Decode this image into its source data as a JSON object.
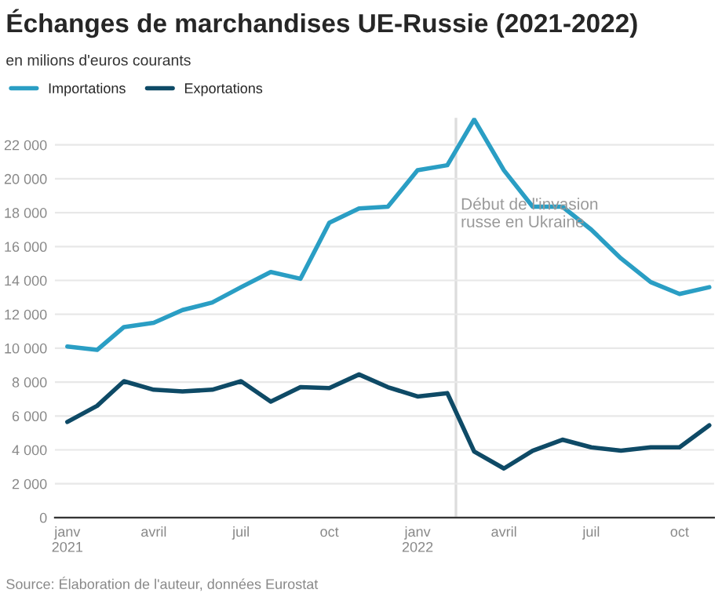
{
  "chart_data": {
    "type": "line",
    "title": "Échanges de marchandises UE-Russie (2021-2022)",
    "subtitle": "en milions d'euros courants",
    "x": [
      "2021-01",
      "2021-02",
      "2021-03",
      "2021-04",
      "2021-05",
      "2021-06",
      "2021-07",
      "2021-08",
      "2021-09",
      "2021-10",
      "2021-11",
      "2021-12",
      "2022-01",
      "2022-02",
      "2022-03",
      "2022-04",
      "2022-05",
      "2022-06",
      "2022-07",
      "2022-08",
      "2022-09",
      "2022-10",
      "2022-11"
    ],
    "series": [
      {
        "name": "Importations",
        "color": "#2a9ec4",
        "values": [
          10100,
          9900,
          11250,
          11500,
          12250,
          12700,
          13600,
          14500,
          14100,
          17400,
          18250,
          18350,
          20500,
          20800,
          23500,
          20500,
          18350,
          18350,
          17000,
          15300,
          13900,
          13200,
          13600
        ]
      },
      {
        "name": "Exportations",
        "color": "#0e4a66",
        "values": [
          5650,
          6600,
          8050,
          7550,
          7450,
          7550,
          8050,
          6850,
          7700,
          7650,
          8450,
          7700,
          7150,
          7350,
          3900,
          2900,
          3950,
          4600,
          4150,
          3950,
          4150,
          4150,
          5450
        ]
      }
    ],
    "xlim": [
      "2020-12-19",
      "2022-11-06"
    ],
    "xticks": [
      {
        "value": "2021-01",
        "label": "janv\n2021"
      },
      {
        "value": "2021-04",
        "label": "avril"
      },
      {
        "value": "2021-07",
        "label": "juil"
      },
      {
        "value": "2021-10",
        "label": "oct"
      },
      {
        "value": "2022-01",
        "label": "janv\n2022"
      },
      {
        "value": "2022-04",
        "label": "avril"
      },
      {
        "value": "2022-07",
        "label": "juil"
      },
      {
        "value": "2022-10",
        "label": "oct"
      }
    ],
    "ylim": [
      0,
      23600
    ],
    "yticks": [
      {
        "value": 0,
        "label": "0"
      },
      {
        "value": 2000,
        "label": "2 000"
      },
      {
        "value": 4000,
        "label": "4 000"
      },
      {
        "value": 6000,
        "label": "6 000"
      },
      {
        "value": 8000,
        "label": "8 000"
      },
      {
        "value": 10000,
        "label": "10 000"
      },
      {
        "value": 12000,
        "label": "12 000"
      },
      {
        "value": 14000,
        "label": "14 000"
      },
      {
        "value": 16000,
        "label": "16 000"
      },
      {
        "value": 18000,
        "label": "18 000"
      },
      {
        "value": 20000,
        "label": "20 000"
      },
      {
        "value": 22000,
        "label": "22 000"
      }
    ],
    "ref_lines": [
      {
        "axis": "x",
        "value": "2022-02-10",
        "label": "Début de l'invasion\nrusse en Ukraine",
        "color": "#dddddd"
      }
    ],
    "annotations": [
      "Source: Élaboration de l'auteur, données Eurostat"
    ],
    "grid": "y",
    "legend": "top left",
    "marker": "none",
    "line_style": "solid"
  }
}
